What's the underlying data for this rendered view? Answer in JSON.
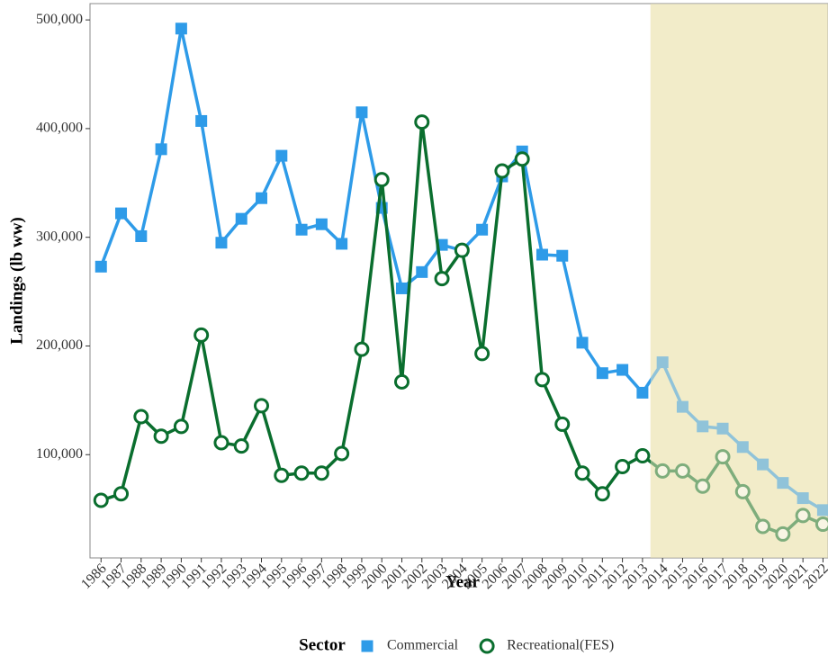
{
  "chart_data": {
    "type": "line",
    "x_label": "Year",
    "y_label": "Landings (lb ww)",
    "x": [
      1986,
      1987,
      1988,
      1989,
      1990,
      1991,
      1992,
      1993,
      1994,
      1995,
      1996,
      1997,
      1998,
      1999,
      2000,
      2001,
      2002,
      2003,
      2004,
      2005,
      2006,
      2007,
      2008,
      2009,
      2010,
      2011,
      2012,
      2013,
      2014,
      2015,
      2016,
      2017,
      2018,
      2019,
      2020,
      2021,
      2022
    ],
    "series": [
      {
        "name": "Commercial",
        "color": "#2e9be8",
        "marker": "square",
        "values": [
          273000,
          322000,
          301000,
          381000,
          492000,
          407000,
          295000,
          317000,
          336000,
          375000,
          307000,
          312000,
          294000,
          415000,
          327000,
          253000,
          268000,
          293000,
          288000,
          307000,
          356000,
          379000,
          284000,
          283000,
          203000,
          175000,
          178000,
          157000,
          185000,
          144000,
          126000,
          124000,
          107000,
          91000,
          74000,
          60000,
          49000
        ]
      },
      {
        "name": "Recreational(FES)",
        "color": "#0a6e2e",
        "marker": "circle",
        "values": [
          58000,
          64000,
          135000,
          117000,
          126000,
          210000,
          111000,
          108000,
          145000,
          81000,
          83000,
          83000,
          101000,
          197000,
          353000,
          167000,
          406000,
          262000,
          288000,
          193000,
          361000,
          372000,
          169000,
          128000,
          83000,
          64000,
          89000,
          99000,
          85000,
          85000,
          71000,
          98000,
          66000,
          34000,
          27000,
          44000,
          36000
        ]
      }
    ],
    "xlim": [
      1985.45,
      2022.25
    ],
    "xticks": [
      1986,
      1987,
      1988,
      1989,
      1990,
      1991,
      1992,
      1993,
      1994,
      1995,
      1996,
      1997,
      1998,
      1999,
      2000,
      2001,
      2002,
      2003,
      2004,
      2005,
      2006,
      2007,
      2008,
      2009,
      2010,
      2011,
      2012,
      2013,
      2014,
      2015,
      2016,
      2017,
      2018,
      2019,
      2020,
      2021,
      2022
    ],
    "ylim": [
      5000,
      515000
    ],
    "yticks": [
      {
        "value": 100000,
        "label": "100,000"
      },
      {
        "value": 200000,
        "label": "200,000"
      },
      {
        "value": 300000,
        "label": "300,000"
      },
      {
        "value": 400000,
        "label": "400,000"
      },
      {
        "value": 500000,
        "label": "500,000"
      }
    ],
    "shade_from_x": 2013.4,
    "shade_color": "#f2ecc9",
    "legend_title": "Sector",
    "legend_position": "bottom",
    "grid": false
  }
}
